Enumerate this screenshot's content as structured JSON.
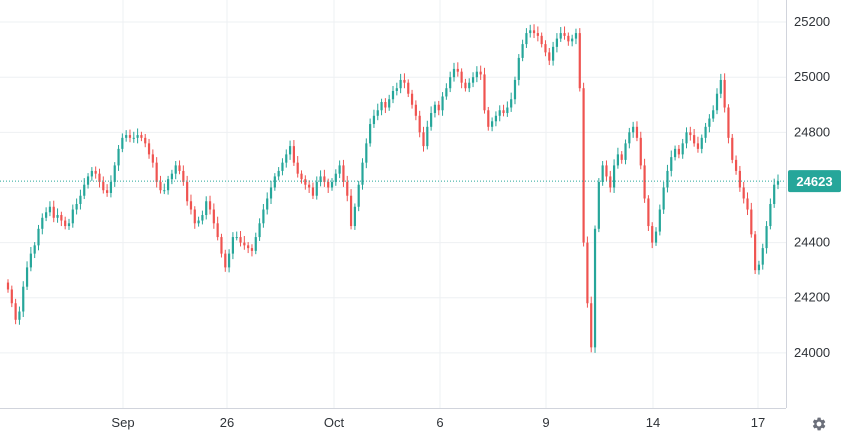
{
  "chart_data": {
    "type": "candlestick",
    "x_ticks": [
      "Sep",
      "26",
      "Oct",
      "6",
      "9",
      "14",
      "17"
    ],
    "y_ticks": [
      24000,
      24200,
      24400,
      24600,
      24800,
      25000,
      25200
    ],
    "ylim": [
      23800,
      25280
    ],
    "grid": true,
    "last_price": 24623,
    "last_price_label": "24623",
    "colors": {
      "up": "#26a69a",
      "down": "#ef5350",
      "grid": "#eef0f3",
      "text": "#2f3338",
      "axis": "#d1d4dc",
      "marker": "#26a69a"
    },
    "closes": [
      24230,
      24180,
      24120,
      24150,
      24240,
      24310,
      24360,
      24390,
      24450,
      24490,
      24510,
      24530,
      24490,
      24500,
      24480,
      24460,
      24470,
      24520,
      24540,
      24570,
      24610,
      24640,
      24660,
      24650,
      24620,
      24590,
      24580,
      24620,
      24680,
      24740,
      24780,
      24790,
      24780,
      24780,
      24790,
      24780,
      24760,
      24720,
      24690,
      24620,
      24590,
      24590,
      24630,
      24650,
      24680,
      24660,
      24620,
      24550,
      24520,
      24470,
      24480,
      24500,
      24550,
      24520,
      24470,
      24420,
      24360,
      24310,
      24360,
      24420,
      24420,
      24400,
      24390,
      24380,
      24370,
      24420,
      24470,
      24520,
      24560,
      24600,
      24640,
      24660,
      24690,
      24720,
      24750,
      24690,
      24650,
      24630,
      24610,
      24600,
      24570,
      24620,
      24640,
      24620,
      24600,
      24620,
      24650,
      24680,
      24620,
      24570,
      24460,
      24530,
      24610,
      24690,
      24760,
      24830,
      24860,
      24880,
      24910,
      24890,
      24920,
      24950,
      24960,
      24990,
      24980,
      24940,
      24900,
      24860,
      24800,
      24750,
      24820,
      24870,
      24900,
      24880,
      24930,
      24960,
      25000,
      25030,
      25020,
      24980,
      24960,
      24980,
      25000,
      25020,
      25010,
      24880,
      24820,
      24840,
      24860,
      24880,
      24870,
      24890,
      24920,
      24990,
      25070,
      25120,
      25160,
      25170,
      25160,
      25150,
      25120,
      25090,
      25060,
      25110,
      25140,
      25160,
      25150,
      25130,
      25140,
      25160,
      24960,
      24400,
      24180,
      24020,
      24450,
      24620,
      24680,
      24640,
      24600,
      24680,
      24720,
      24700,
      24760,
      24800,
      24820,
      24780,
      24680,
      24560,
      24460,
      24400,
      24440,
      24520,
      24600,
      24660,
      24710,
      24740,
      24720,
      24760,
      24800,
      24790,
      24760,
      24740,
      24780,
      24820,
      24850,
      24880,
      24940,
      24990,
      24890,
      24780,
      24700,
      24660,
      24600,
      24560,
      24520,
      24430,
      24300,
      24320,
      24380,
      24460,
      24540,
      24610,
      24623
    ]
  },
  "ui": {
    "settings_icon": "gear-icon"
  }
}
